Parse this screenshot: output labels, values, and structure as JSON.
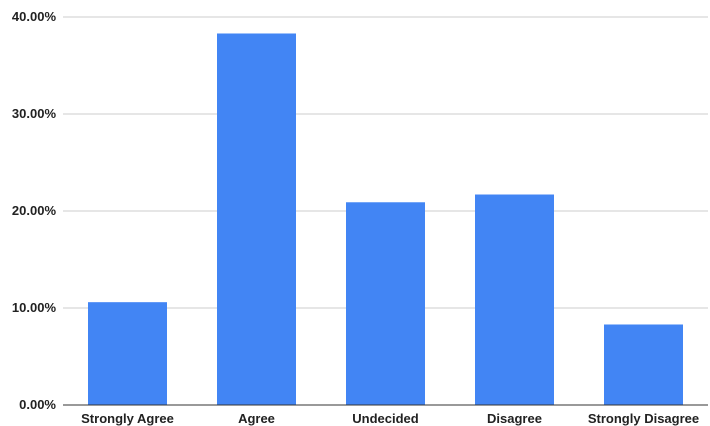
{
  "chart_data": {
    "type": "bar",
    "categories": [
      "Strongly Agree",
      "Agree",
      "Undecided",
      "Disagree",
      "Strongly Disagree"
    ],
    "values": [
      10.6,
      38.3,
      20.9,
      21.7,
      8.3
    ],
    "ylim": [
      0,
      40
    ],
    "yticks": [
      0,
      10,
      20,
      30,
      40
    ],
    "ytick_labels": [
      "0.00%",
      "10.00%",
      "20.00%",
      "30.00%",
      "40.00%"
    ],
    "title": "",
    "xlabel": "",
    "ylabel": "",
    "grid": true,
    "legend": "none",
    "bar_color": "#4285f4"
  }
}
